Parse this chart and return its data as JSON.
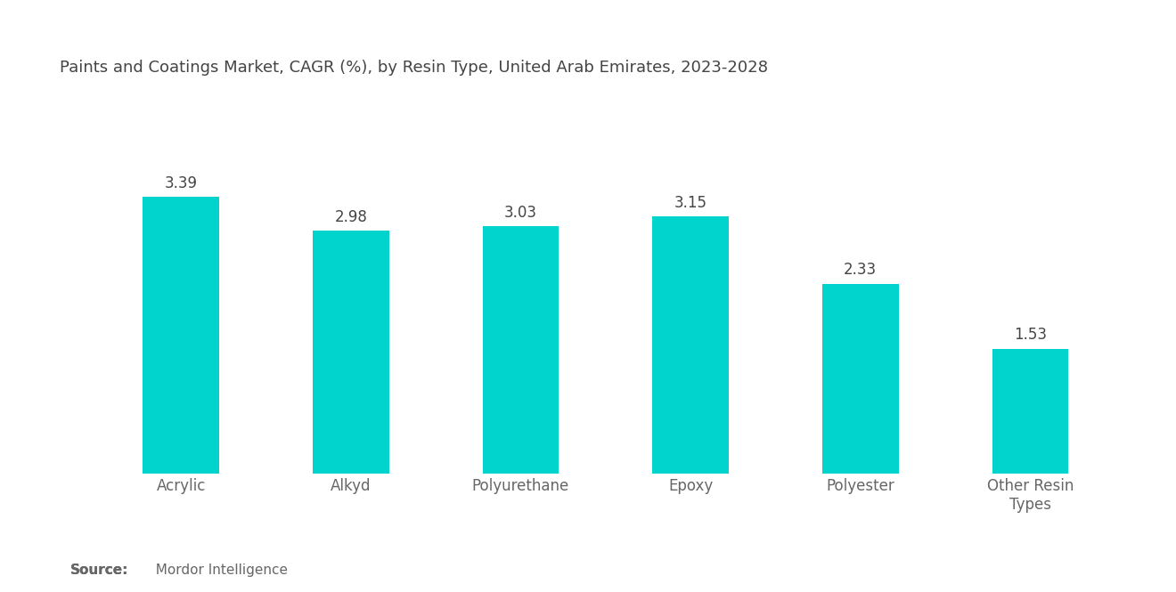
{
  "title": "Paints and Coatings Market, CAGR (%), by Resin Type, United Arab Emirates, 2023-2028",
  "categories": [
    "Acrylic",
    "Alkyd",
    "Polyurethane",
    "Epoxy",
    "Polyester",
    "Other Resin\nTypes"
  ],
  "values": [
    3.39,
    2.98,
    3.03,
    3.15,
    2.33,
    1.53
  ],
  "bar_color": "#00D4CC",
  "background_color": "#ffffff",
  "title_fontsize": 13.0,
  "label_fontsize": 12.0,
  "value_fontsize": 12.0,
  "source_bold": "Source:",
  "source_normal": "  Mordor Intelligence",
  "ylim": [
    0,
    4.5
  ],
  "bar_width": 0.45,
  "title_color": "#444444",
  "label_color": "#666666",
  "value_color": "#444444",
  "source_fontsize": 11.0
}
